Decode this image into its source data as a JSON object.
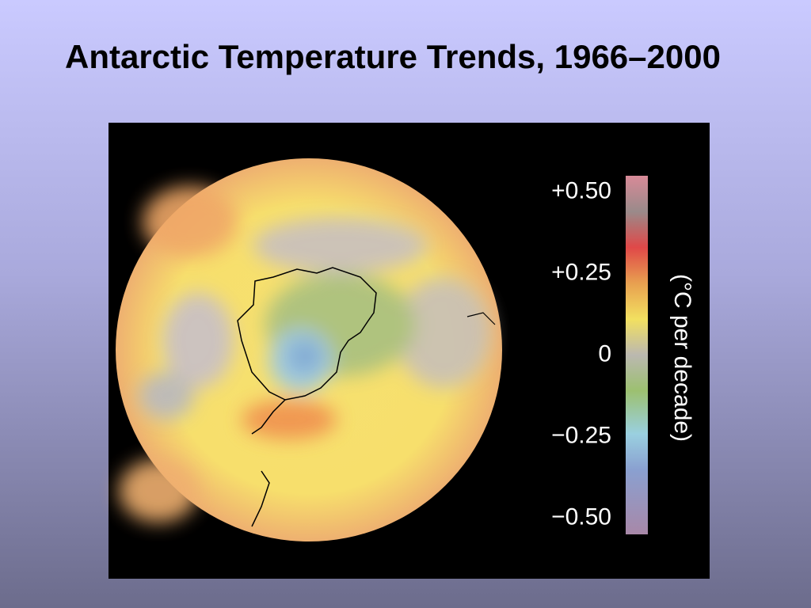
{
  "title": "Antarctic Temperature Trends, 1966–2000",
  "colorbar": {
    "label": "(°C per decade)",
    "lim": [
      -0.55,
      0.55
    ],
    "ticks": [
      {
        "value": 0.5,
        "label": "+0.50"
      },
      {
        "value": 0.25,
        "label": "+0.25"
      },
      0,
      {
        "value": -0.25,
        "label": "−0.25"
      },
      {
        "value": -0.5,
        "label": "−0.50"
      }
    ]
  }
}
